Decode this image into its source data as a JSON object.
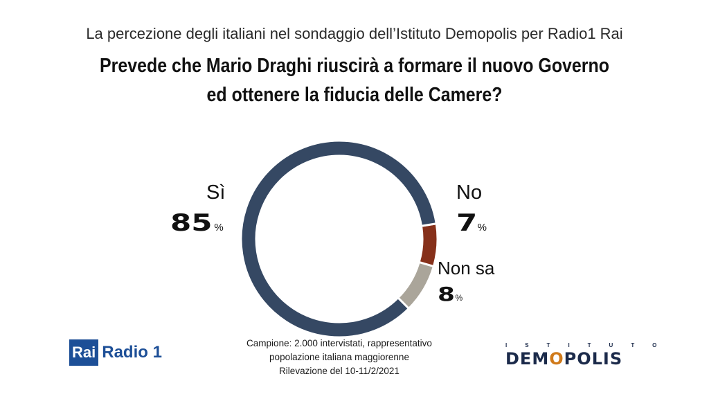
{
  "header": {
    "subtitle": "La percezione degli italiani nel sondaggio dell’Istituto Demopolis per Radio1 Rai",
    "question_line1": "Prevede che Mario Draghi riuscirà a formare il nuovo Governo",
    "question_line2": "ed ottenere la fiducia delle Camere?"
  },
  "chart_data": {
    "type": "pie",
    "title": "Prevede che Mario Draghi riuscirà a formare il nuovo Governo ed ottenere la fiducia delle Camere?",
    "categories": [
      "Sì",
      "No",
      "Non sa"
    ],
    "values": [
      85,
      7,
      8
    ],
    "unit": "%",
    "colors": [
      "#354863",
      "#86301a",
      "#aaa59a"
    ],
    "donut": true
  },
  "labels": {
    "si": {
      "name": "Sì",
      "value": "85",
      "pct": "%"
    },
    "no": {
      "name": "No",
      "value": "7",
      "pct": "%"
    },
    "nonsa": {
      "name": "Non sa",
      "value": "8",
      "pct": "%"
    }
  },
  "footer": {
    "line1": "Campione: 2.000 intervistati, rappresentativo",
    "line2": "popolazione italiana maggiorenne",
    "line3": "Rilevazione del 10-11/2/2021"
  },
  "logos": {
    "rai": "Rai",
    "radio": "Radio 1",
    "istituto": "ISTITUTO",
    "demopolis_pre": "DEM",
    "demopolis_o": "O",
    "demopolis_post": "POLIS"
  }
}
